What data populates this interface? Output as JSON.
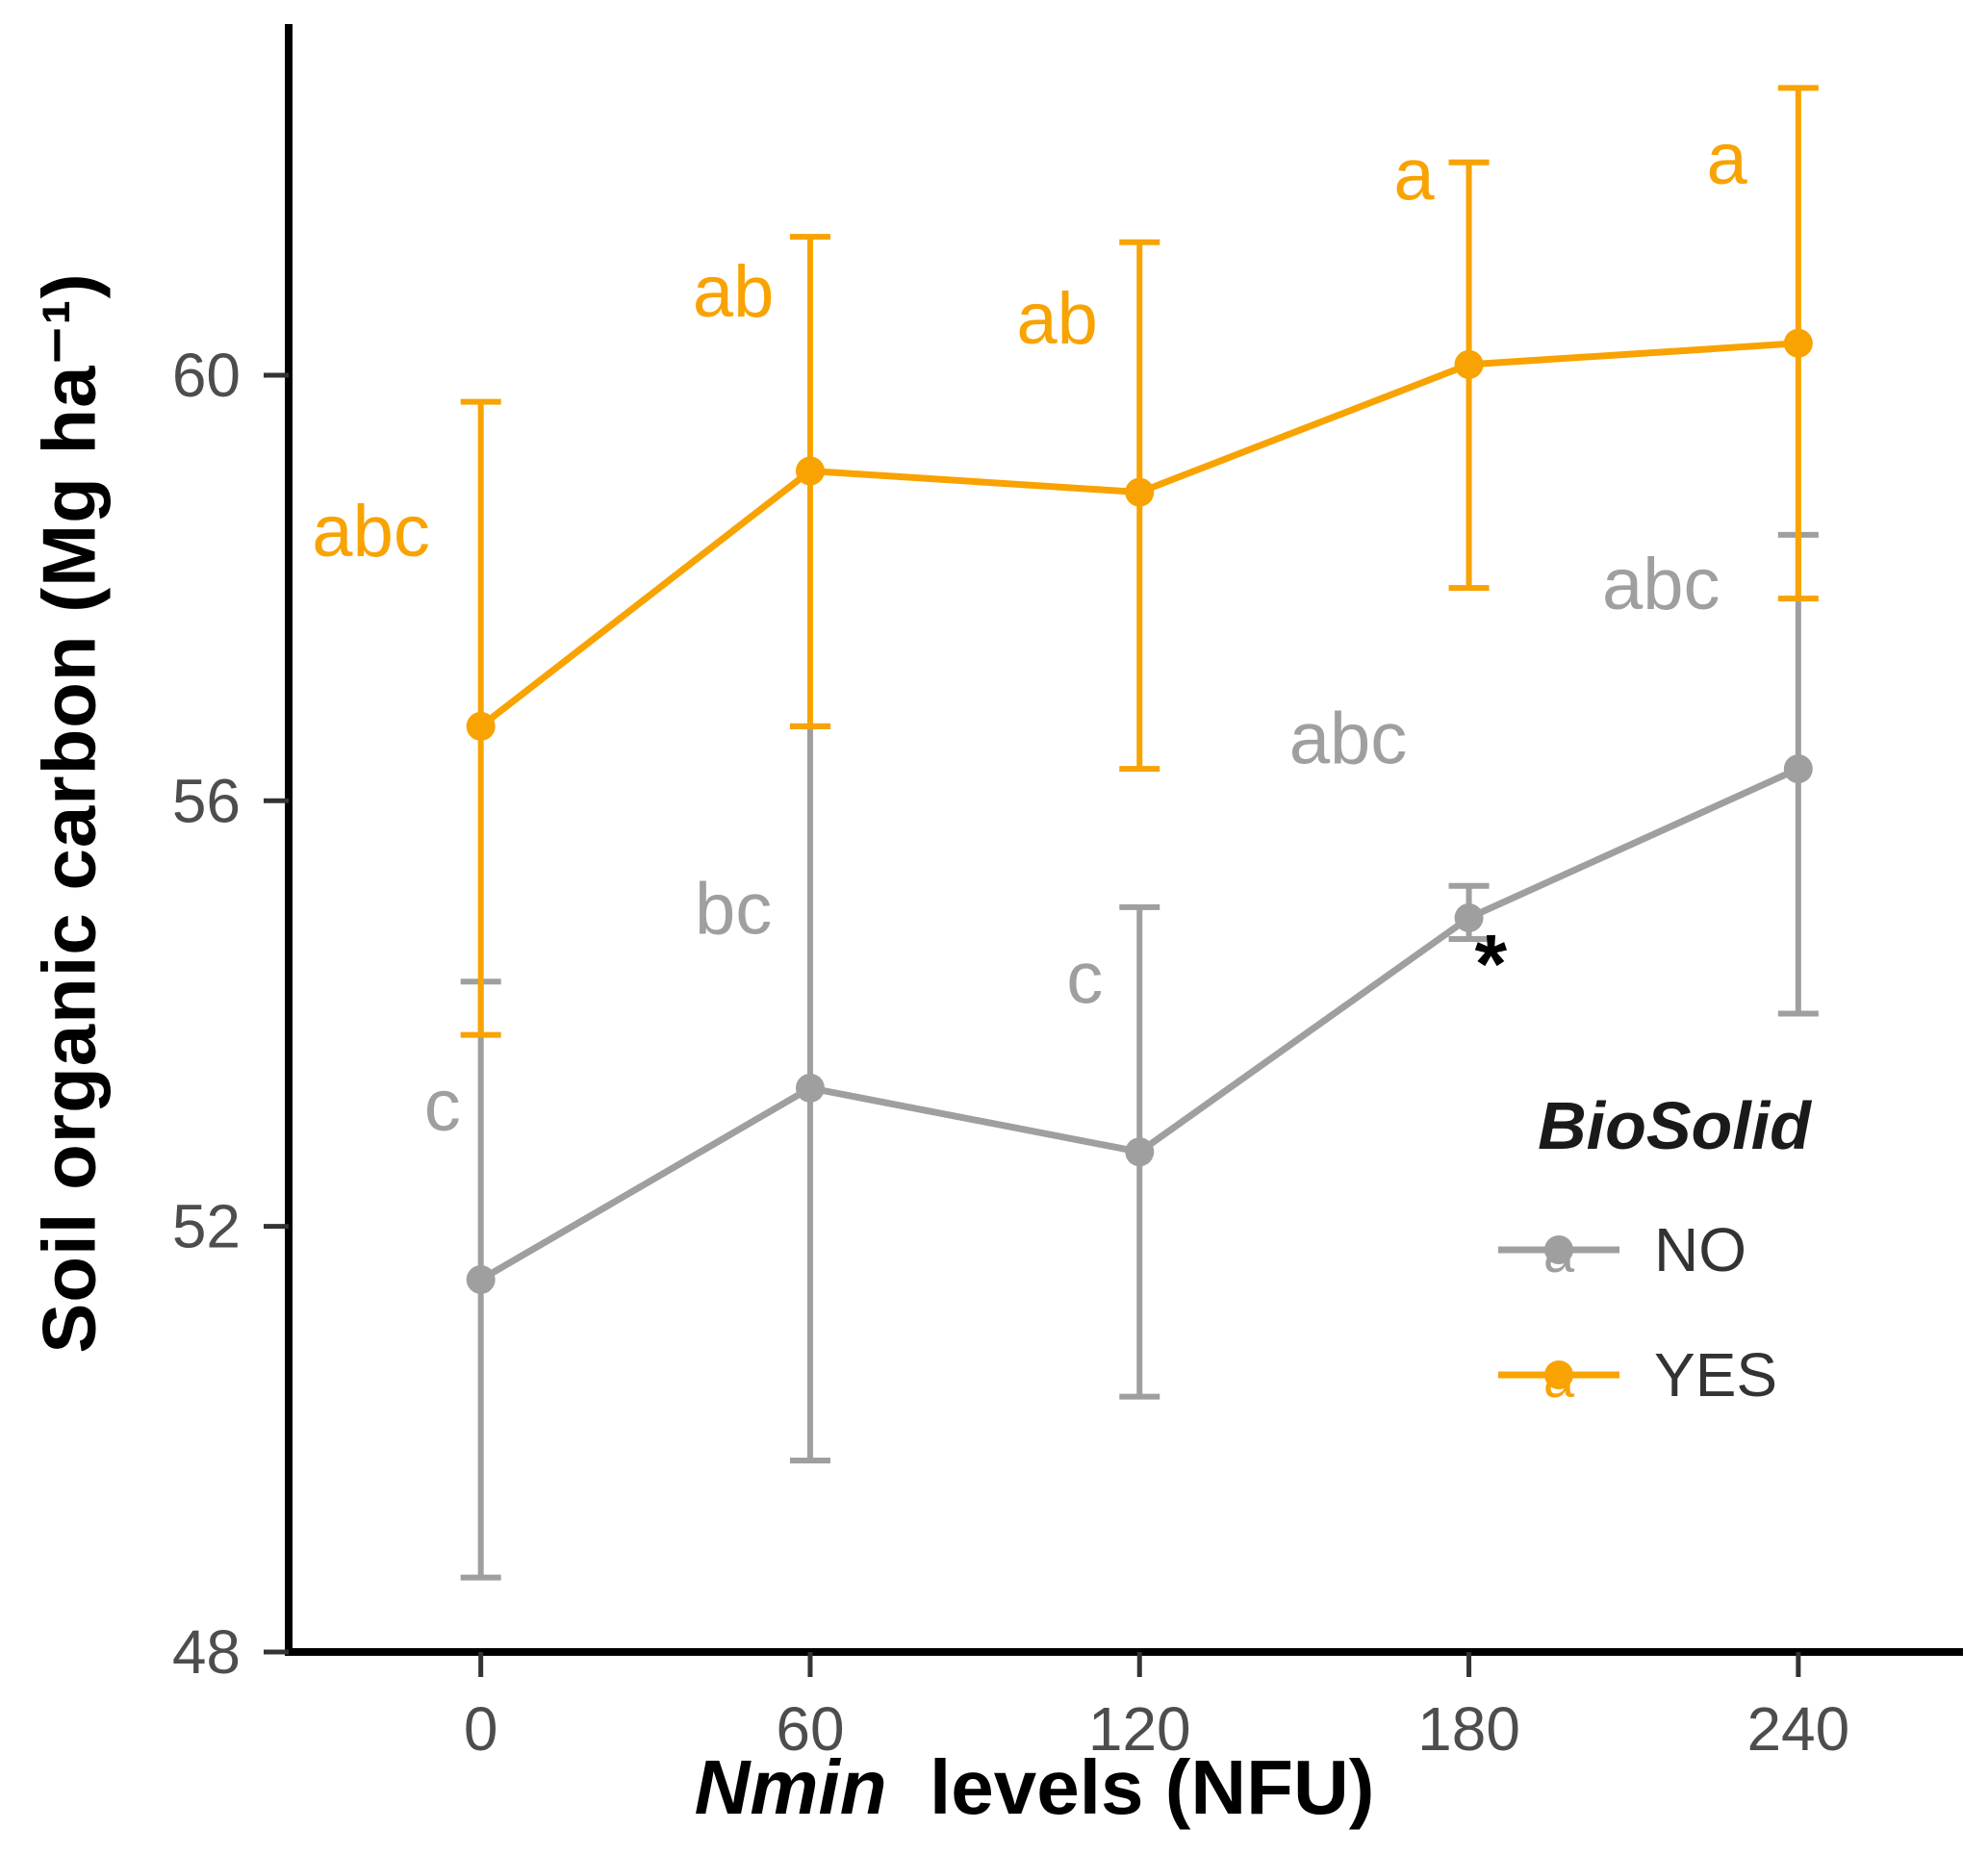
{
  "chart_data": {
    "type": "line",
    "title": "",
    "ylabel": "Soil organic carbon (Mg ha⁻¹)",
    "xlabel_italic": "Nmin",
    "xlabel_rest": "  levels (NFU)",
    "x_ticks": [
      0,
      60,
      120,
      180,
      240
    ],
    "y_ticks": [
      48,
      52,
      56,
      60
    ],
    "xlim": [
      -35,
      270
    ],
    "ylim": [
      48,
      63.3
    ],
    "grid": false,
    "legend_position": "inside-right-bottom",
    "series": [
      {
        "name": "NO",
        "color": "#9f9f9f",
        "x": [
          0,
          60,
          120,
          180,
          240
        ],
        "values": [
          51.5,
          53.3,
          52.7,
          54.9,
          56.3
        ],
        "err_low": [
          48.7,
          49.8,
          50.4,
          54.7,
          54.0
        ],
        "err_high": [
          54.3,
          56.7,
          55.0,
          55.2,
          58.5
        ],
        "point_labels": [
          {
            "text": "c",
            "x": -7,
            "y": 52.9
          },
          {
            "text": "bc",
            "x": 46,
            "y": 54.75
          },
          {
            "text": "c",
            "x": 110,
            "y": 54.1
          },
          {
            "text": "abc",
            "x": 158,
            "y": 56.35
          },
          {
            "text": "abc",
            "x": 215,
            "y": 57.8
          }
        ]
      },
      {
        "name": "YES",
        "color": "#f8a301",
        "x": [
          0,
          60,
          120,
          180,
          240
        ],
        "values": [
          56.7,
          59.1,
          58.9,
          60.1,
          60.3
        ],
        "err_low": [
          53.8,
          56.7,
          56.3,
          58.0,
          57.9
        ],
        "err_high": [
          59.75,
          61.3,
          61.25,
          62.0,
          62.7
        ],
        "point_labels": [
          {
            "text": "abc",
            "x": -20,
            "y": 58.3
          },
          {
            "text": "ab",
            "x": 46,
            "y": 60.55
          },
          {
            "text": "ab",
            "x": 105,
            "y": 60.3
          },
          {
            "text": "a",
            "x": 170,
            "y": 61.65
          },
          {
            "text": "a",
            "x": 227,
            "y": 61.8
          }
        ]
      }
    ],
    "annotations": [
      {
        "text": "*",
        "x": 184,
        "y": 54.2,
        "color": "#000000"
      }
    ],
    "legend": {
      "title": "BioSolid",
      "key_letter": "a",
      "entries": [
        {
          "label": "NO",
          "series": "NO"
        },
        {
          "label": "YES",
          "series": "YES"
        }
      ]
    },
    "colors": {
      "axis": "#000000",
      "tick_label": "#4d4d4d"
    }
  }
}
